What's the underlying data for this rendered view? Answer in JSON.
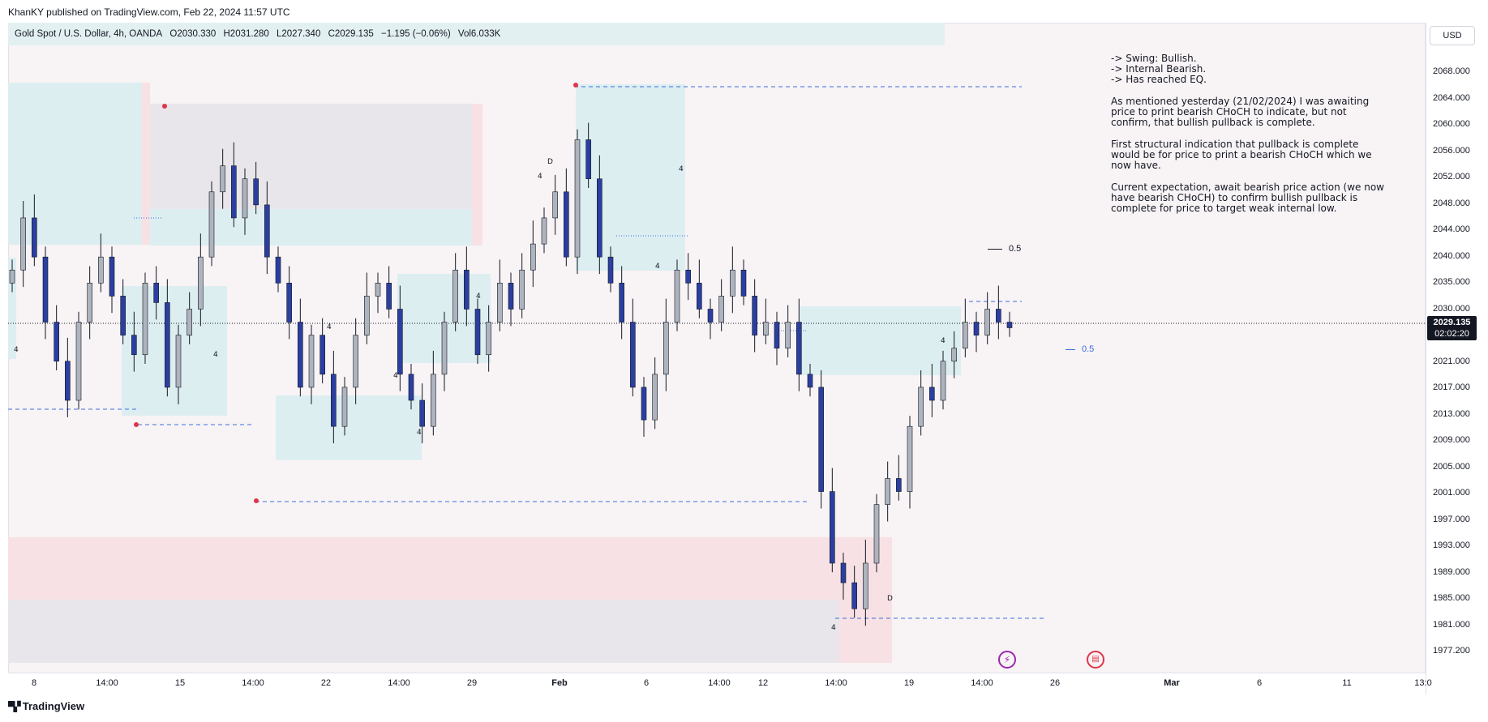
{
  "publish_info": "KhanKY published on TradingView.com, Feb 22, 2024 11:57 UTC",
  "symbol": {
    "name": "Gold Spot / U.S. Dollar, 4h, OANDA",
    "open": "O2030.330",
    "high": "H2031.280",
    "low": "L2027.340",
    "close": "C2029.135",
    "change": "−1.195 (−0.06%)",
    "volume": "Vol6.033K"
  },
  "currency_button": "USD",
  "price_ticks": [
    "2068.000",
    "2064.000",
    "2060.000",
    "2056.000",
    "2052.000",
    "2048.000",
    "2044.000",
    "2040.000",
    "2035.000",
    "2030.000",
    "2025.000",
    "2021.000",
    "2017.000",
    "2013.000",
    "2009.000",
    "2005.000",
    "2001.000",
    "1997.000",
    "1993.000",
    "1989.000",
    "1985.000",
    "1981.000",
    "1977.200"
  ],
  "last_price": {
    "value": "2029.135",
    "countdown": "02:02:20"
  },
  "time_ticks": [
    "8",
    "14:00",
    "15",
    "14:00",
    "22",
    "14:00",
    "29",
    "Feb",
    "6",
    "14:00",
    "12",
    "14:00",
    "19",
    "14:00",
    "26",
    "Mar",
    "6",
    "11",
    "13:0"
  ],
  "annotation": {
    "swing_lines": [
      "-> Swing: Bullish.",
      "-> Internal Bearish.",
      "-> Has reached EQ."
    ],
    "paragraphs": [
      "As mentioned yesterday (21/02/2024) I was awaiting price to print bearish CHoCH to indicate, but not confirm, that bullish pullback is complete.",
      "First structural indication that pullback is complete would be for price to print a bearish CHoCH which we now have.",
      "Current expectation, await bearish price action (we now have bearish CHoCH) to confirm bullish pullback is complete for price to target weak internal low."
    ]
  },
  "fib_labels": {
    "upper": "0.5",
    "lower": "0.5"
  },
  "markers": {
    "four": "4",
    "daily": "D"
  },
  "footer": "TradingView",
  "colors": {
    "bull": "#aeb4be",
    "bear": "#2b3fa0",
    "zone_blue": "#ddeef1",
    "zone_red": "#f8e1e4",
    "zone_gray": "#e8e6ea",
    "dashed": "#3b6fe0"
  },
  "chart_data": {
    "type": "candlestick",
    "timeframe": "4h",
    "ylim": [
      1977.2,
      2070
    ],
    "closes": [
      2038,
      2046,
      2040,
      2030,
      2024,
      2018,
      2030,
      2036,
      2040,
      2034,
      2028,
      2025,
      2036,
      2033,
      2020,
      2028,
      2032,
      2040,
      2050,
      2054,
      2046,
      2052,
      2048,
      2040,
      2036,
      2030,
      2020,
      2028,
      2022,
      2014,
      2020,
      2028,
      2034,
      2036,
      2032,
      2022,
      2018,
      2014,
      2022,
      2030,
      2038,
      2032,
      2025,
      2030,
      2036,
      2032,
      2038,
      2042,
      2046,
      2050,
      2040,
      2058,
      2052,
      2040,
      2036,
      2030,
      2020,
      2015,
      2022,
      2030,
      2038,
      2036,
      2032,
      2030,
      2034,
      2038,
      2034,
      2028,
      2030,
      2026,
      2030,
      2022,
      2020,
      2004,
      1993,
      1990,
      1986,
      1993,
      2002,
      2006,
      2004,
      2014,
      2020,
      2018,
      2024,
      2026,
      2030,
      2028,
      2032,
      2030,
      2029.135
    ]
  }
}
